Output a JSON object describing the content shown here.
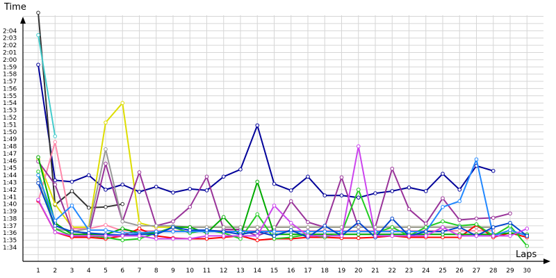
{
  "chart_data": {
    "type": "line",
    "xlabel": "Laps",
    "ylabel": "Time",
    "x": [
      1,
      2,
      3,
      4,
      5,
      6,
      7,
      8,
      9,
      10,
      11,
      12,
      13,
      14,
      15,
      16,
      17,
      18,
      19,
      20,
      21,
      22,
      23,
      24,
      25,
      26,
      27,
      28,
      29,
      30
    ],
    "ytick_labels": [
      "1:34",
      "1:35",
      "1:36",
      "1:37",
      "1:38",
      "1:39",
      "1:40",
      "1:41",
      "1:42",
      "1:43",
      "1:44",
      "1:45",
      "1:46",
      "1:47",
      "1:48",
      "1:49",
      "1:50",
      "1:51",
      "1:52",
      "1:53",
      "1:54",
      "1:55",
      "1:56",
      "1:57",
      "1:58",
      "1:59",
      "2:00",
      "2:01",
      "2:02",
      "2:03",
      "2:04"
    ],
    "ytick_values": [
      94,
      95,
      96,
      97,
      98,
      99,
      100,
      101,
      102,
      103,
      104,
      105,
      106,
      107,
      108,
      109,
      110,
      111,
      112,
      113,
      114,
      115,
      116,
      117,
      118,
      119,
      120,
      121,
      122,
      123,
      124
    ],
    "ylim": [
      92.4,
      126.5
    ],
    "grid": true,
    "legend": "none",
    "series": [
      {
        "color": "#000099",
        "values": [
          119.3,
          103.3,
          103.1,
          104.0,
          102.0,
          102.7,
          101.7,
          102.4,
          101.6,
          102.1,
          101.9,
          103.8,
          104.8,
          110.9,
          102.8,
          101.9,
          103.8,
          101.2,
          101.2,
          100.9,
          101.5,
          101.8,
          102.3,
          101.8,
          104.2,
          102.0,
          105.3,
          104.6,
          null,
          null
        ]
      },
      {
        "color": "#333333",
        "values": [
          126.5,
          99.9,
          101.8,
          99.5,
          99.6,
          100.0,
          null,
          null,
          null,
          null,
          null,
          null,
          null,
          null,
          null,
          null,
          null,
          null,
          null,
          null,
          null,
          null,
          null,
          null,
          null,
          null,
          null,
          null,
          null,
          null
        ]
      },
      {
        "color": "#44cccc",
        "values": [
          123.4,
          109.4,
          null,
          null,
          null,
          null,
          null,
          null,
          null,
          null,
          null,
          null,
          null,
          null,
          null,
          null,
          null,
          null,
          null,
          null,
          null,
          null,
          null,
          null,
          null,
          null,
          null,
          null,
          null,
          null
        ]
      },
      {
        "color": "#dddd00",
        "values": [
          106.2,
          100.0,
          96.8,
          96.8,
          111.3,
          114.0,
          97.4,
          96.8,
          96.8,
          96.8,
          96.8,
          96.8,
          96.8,
          96.8,
          96.8,
          96.8,
          96.8,
          96.8,
          96.8,
          96.8,
          96.8,
          96.8,
          96.8,
          96.8,
          96.8,
          96.8,
          96.8,
          96.8,
          null,
          null
        ]
      },
      {
        "color": "#ff88aa",
        "values": [
          100.4,
          108.6,
          96.6,
          96.6,
          97.1,
          96.3,
          96.3,
          96.3,
          96.3,
          96.3,
          96.3,
          96.3,
          96.3,
          96.3,
          96.3,
          96.3,
          96.3,
          96.3,
          96.3,
          96.3,
          96.3,
          96.3,
          96.3,
          96.3,
          96.3,
          96.3,
          96.3,
          96.3,
          null,
          null
        ]
      },
      {
        "color": "#993399",
        "values": [
          105.9,
          102.7,
          96.4,
          95.8,
          105.6,
          97.6,
          104.4,
          97.0,
          97.6,
          99.6,
          103.8,
          96.5,
          96.5,
          95.6,
          96.5,
          100.4,
          97.5,
          96.8,
          103.7,
          96.8,
          96.8,
          104.9,
          99.3,
          97.3,
          100.8,
          97.8,
          98.0,
          98.1,
          98.7,
          null
        ]
      },
      {
        "color": "#999999",
        "values": [
          103.3,
          96.6,
          96.2,
          96.6,
          107.6,
          97.6,
          97.0,
          97.0,
          97.0,
          96.8,
          96.8,
          96.8,
          96.8,
          96.8,
          96.8,
          96.8,
          96.8,
          96.8,
          96.8,
          96.8,
          96.8,
          96.8,
          96.8,
          96.8,
          96.8,
          96.8,
          96.8,
          96.8,
          null,
          null
        ]
      },
      {
        "color": "#ff0000",
        "values": [
          100.5,
          96.1,
          95.4,
          95.4,
          95.2,
          95.6,
          96.6,
          95.6,
          95.3,
          95.2,
          95.2,
          95.4,
          95.6,
          95.0,
          95.2,
          95.2,
          95.4,
          95.4,
          95.3,
          95.3,
          95.4,
          95.6,
          95.4,
          95.4,
          95.4,
          95.4,
          97.1,
          95.4,
          96.0,
          95.4
        ]
      },
      {
        "color": "#00aa00",
        "values": [
          106.5,
          97.4,
          95.8,
          95.8,
          95.8,
          96.6,
          96.0,
          96.0,
          96.8,
          96.8,
          96.0,
          98.2,
          95.6,
          103.1,
          95.8,
          95.8,
          95.8,
          95.8,
          95.8,
          95.8,
          95.8,
          95.8,
          95.8,
          95.8,
          95.8,
          95.8,
          95.8,
          95.8,
          96.0,
          95.8
        ]
      },
      {
        "color": "#22cc22",
        "values": [
          104.5,
          96.6,
          95.6,
          95.6,
          95.4,
          95.0,
          95.2,
          96.0,
          96.8,
          96.0,
          96.4,
          96.0,
          95.2,
          98.6,
          95.2,
          95.4,
          95.8,
          95.4,
          96.0,
          102.0,
          96.0,
          96.8,
          95.6,
          96.8,
          97.6,
          97.0,
          97.2,
          95.6,
          97.0,
          94.2
        ]
      },
      {
        "color": "#2288ff",
        "values": [
          104.0,
          97.7,
          99.8,
          96.4,
          96.4,
          96.0,
          96.0,
          96.2,
          96.2,
          96.2,
          96.2,
          96.2,
          96.2,
          96.2,
          96.2,
          96.2,
          96.2,
          96.2,
          96.2,
          96.2,
          96.2,
          96.2,
          96.2,
          96.2,
          99.6,
          100.4,
          106.2,
          95.6,
          96.4,
          95.6
        ]
      },
      {
        "color": "#0044cc",
        "values": [
          102.9,
          97.0,
          96.2,
          96.0,
          95.8,
          95.7,
          95.8,
          95.8,
          96.8,
          96.4,
          96.4,
          96.2,
          95.8,
          96.2,
          95.6,
          96.4,
          95.4,
          97.0,
          95.6,
          97.5,
          95.4,
          98.0,
          95.6,
          96.2,
          96.2,
          96.8,
          95.6,
          96.8,
          97.4,
          95.6
        ]
      },
      {
        "color": "#cc44ee",
        "values": [
          100.6,
          96.1,
          95.6,
          95.6,
          95.6,
          95.6,
          95.6,
          95.2,
          95.2,
          95.2,
          95.6,
          95.6,
          95.6,
          95.6,
          99.8,
          97.4,
          95.6,
          95.6,
          95.6,
          108.0,
          95.6,
          95.6,
          95.6,
          95.6,
          96.8,
          95.6,
          95.6,
          95.6,
          95.6,
          96.6
        ]
      }
    ]
  }
}
